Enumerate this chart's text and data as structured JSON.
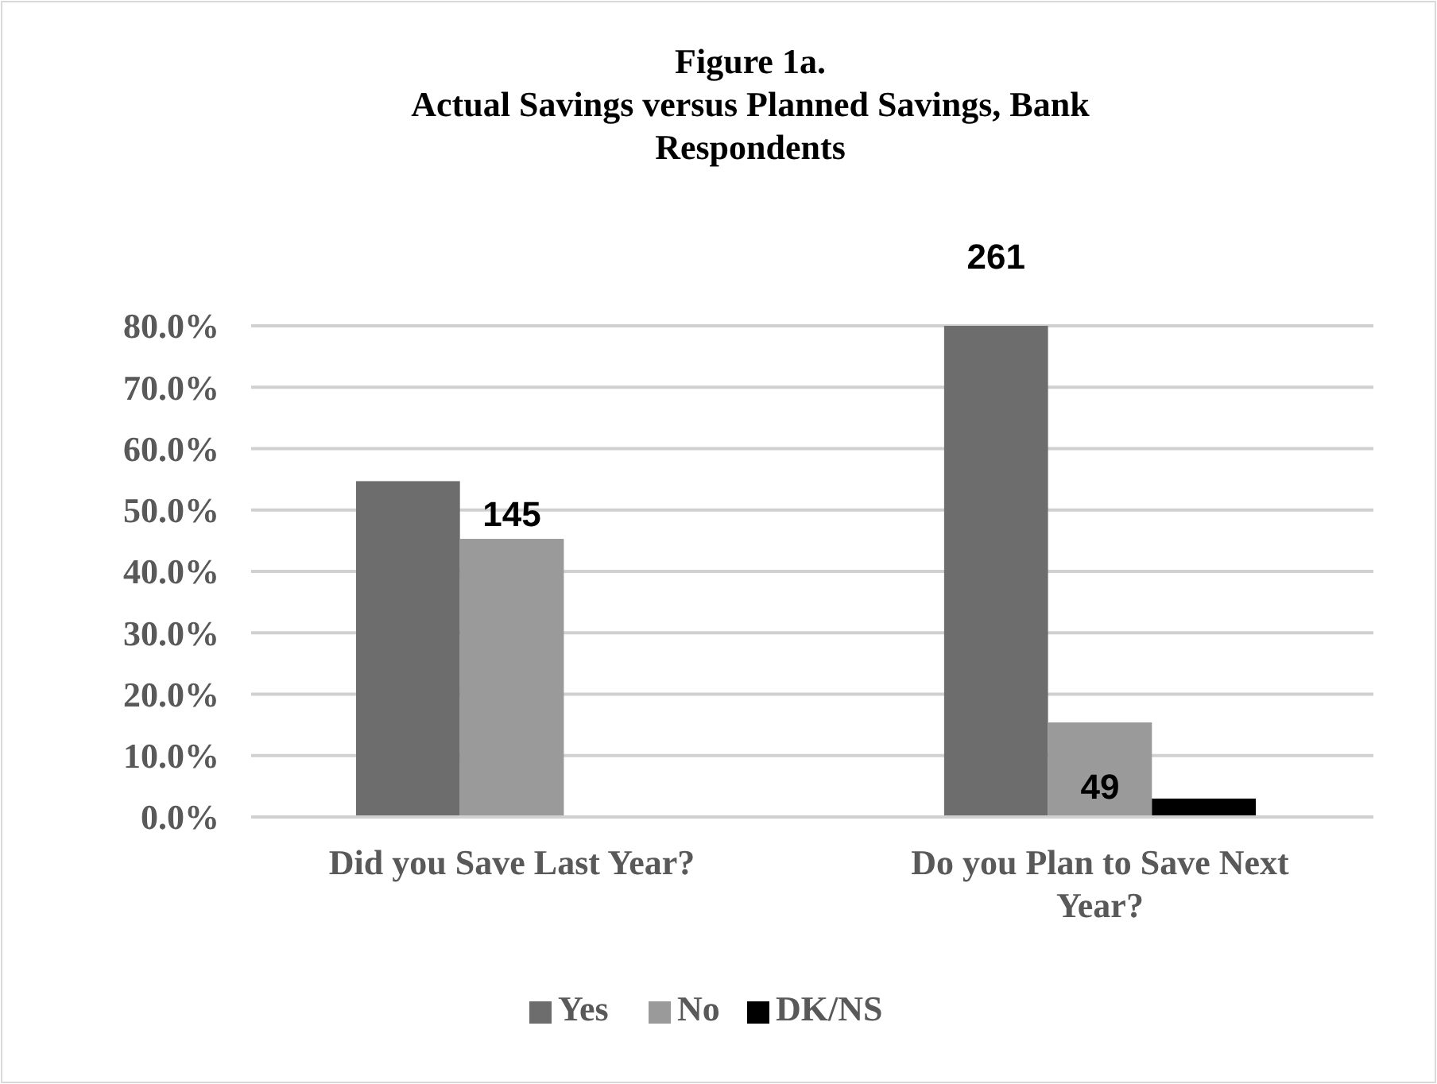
{
  "chart_data": {
    "type": "bar",
    "title": "Figure 1a.",
    "subtitle": "Actual Savings versus Planned Savings, Bank Respondents",
    "categories": [
      "Did you Save Last Year?",
      "Do you Plan to Save Next Year?"
    ],
    "series": [
      {
        "name": "Yes",
        "color": "#6d6d6d",
        "values": [
          54.7,
          80
        ]
      },
      {
        "name": "No",
        "color": "#9a9a9a",
        "values": [
          45.3,
          15.4
        ]
      },
      {
        "name": "DK/NS",
        "color": "#000000",
        "values": [
          0,
          3
        ]
      }
    ],
    "annotations": [
      "145",
      "261",
      "49"
    ],
    "ylim": [
      0,
      80
    ],
    "yticks": [
      {
        "value": 0,
        "label": "0.0%"
      },
      {
        "value": 10,
        "label": "10.0%"
      },
      {
        "value": 20,
        "label": "20.0%"
      },
      {
        "value": 30,
        "label": "30.0%"
      },
      {
        "value": 40,
        "label": "40.0%"
      },
      {
        "value": 50,
        "label": "50.0%"
      },
      {
        "value": 60,
        "label": "60.0%"
      },
      {
        "value": 70,
        "label": "70.0%"
      },
      {
        "value": 80,
        "label": "80.0%"
      }
    ],
    "grid": "y",
    "legend": "bottom"
  }
}
